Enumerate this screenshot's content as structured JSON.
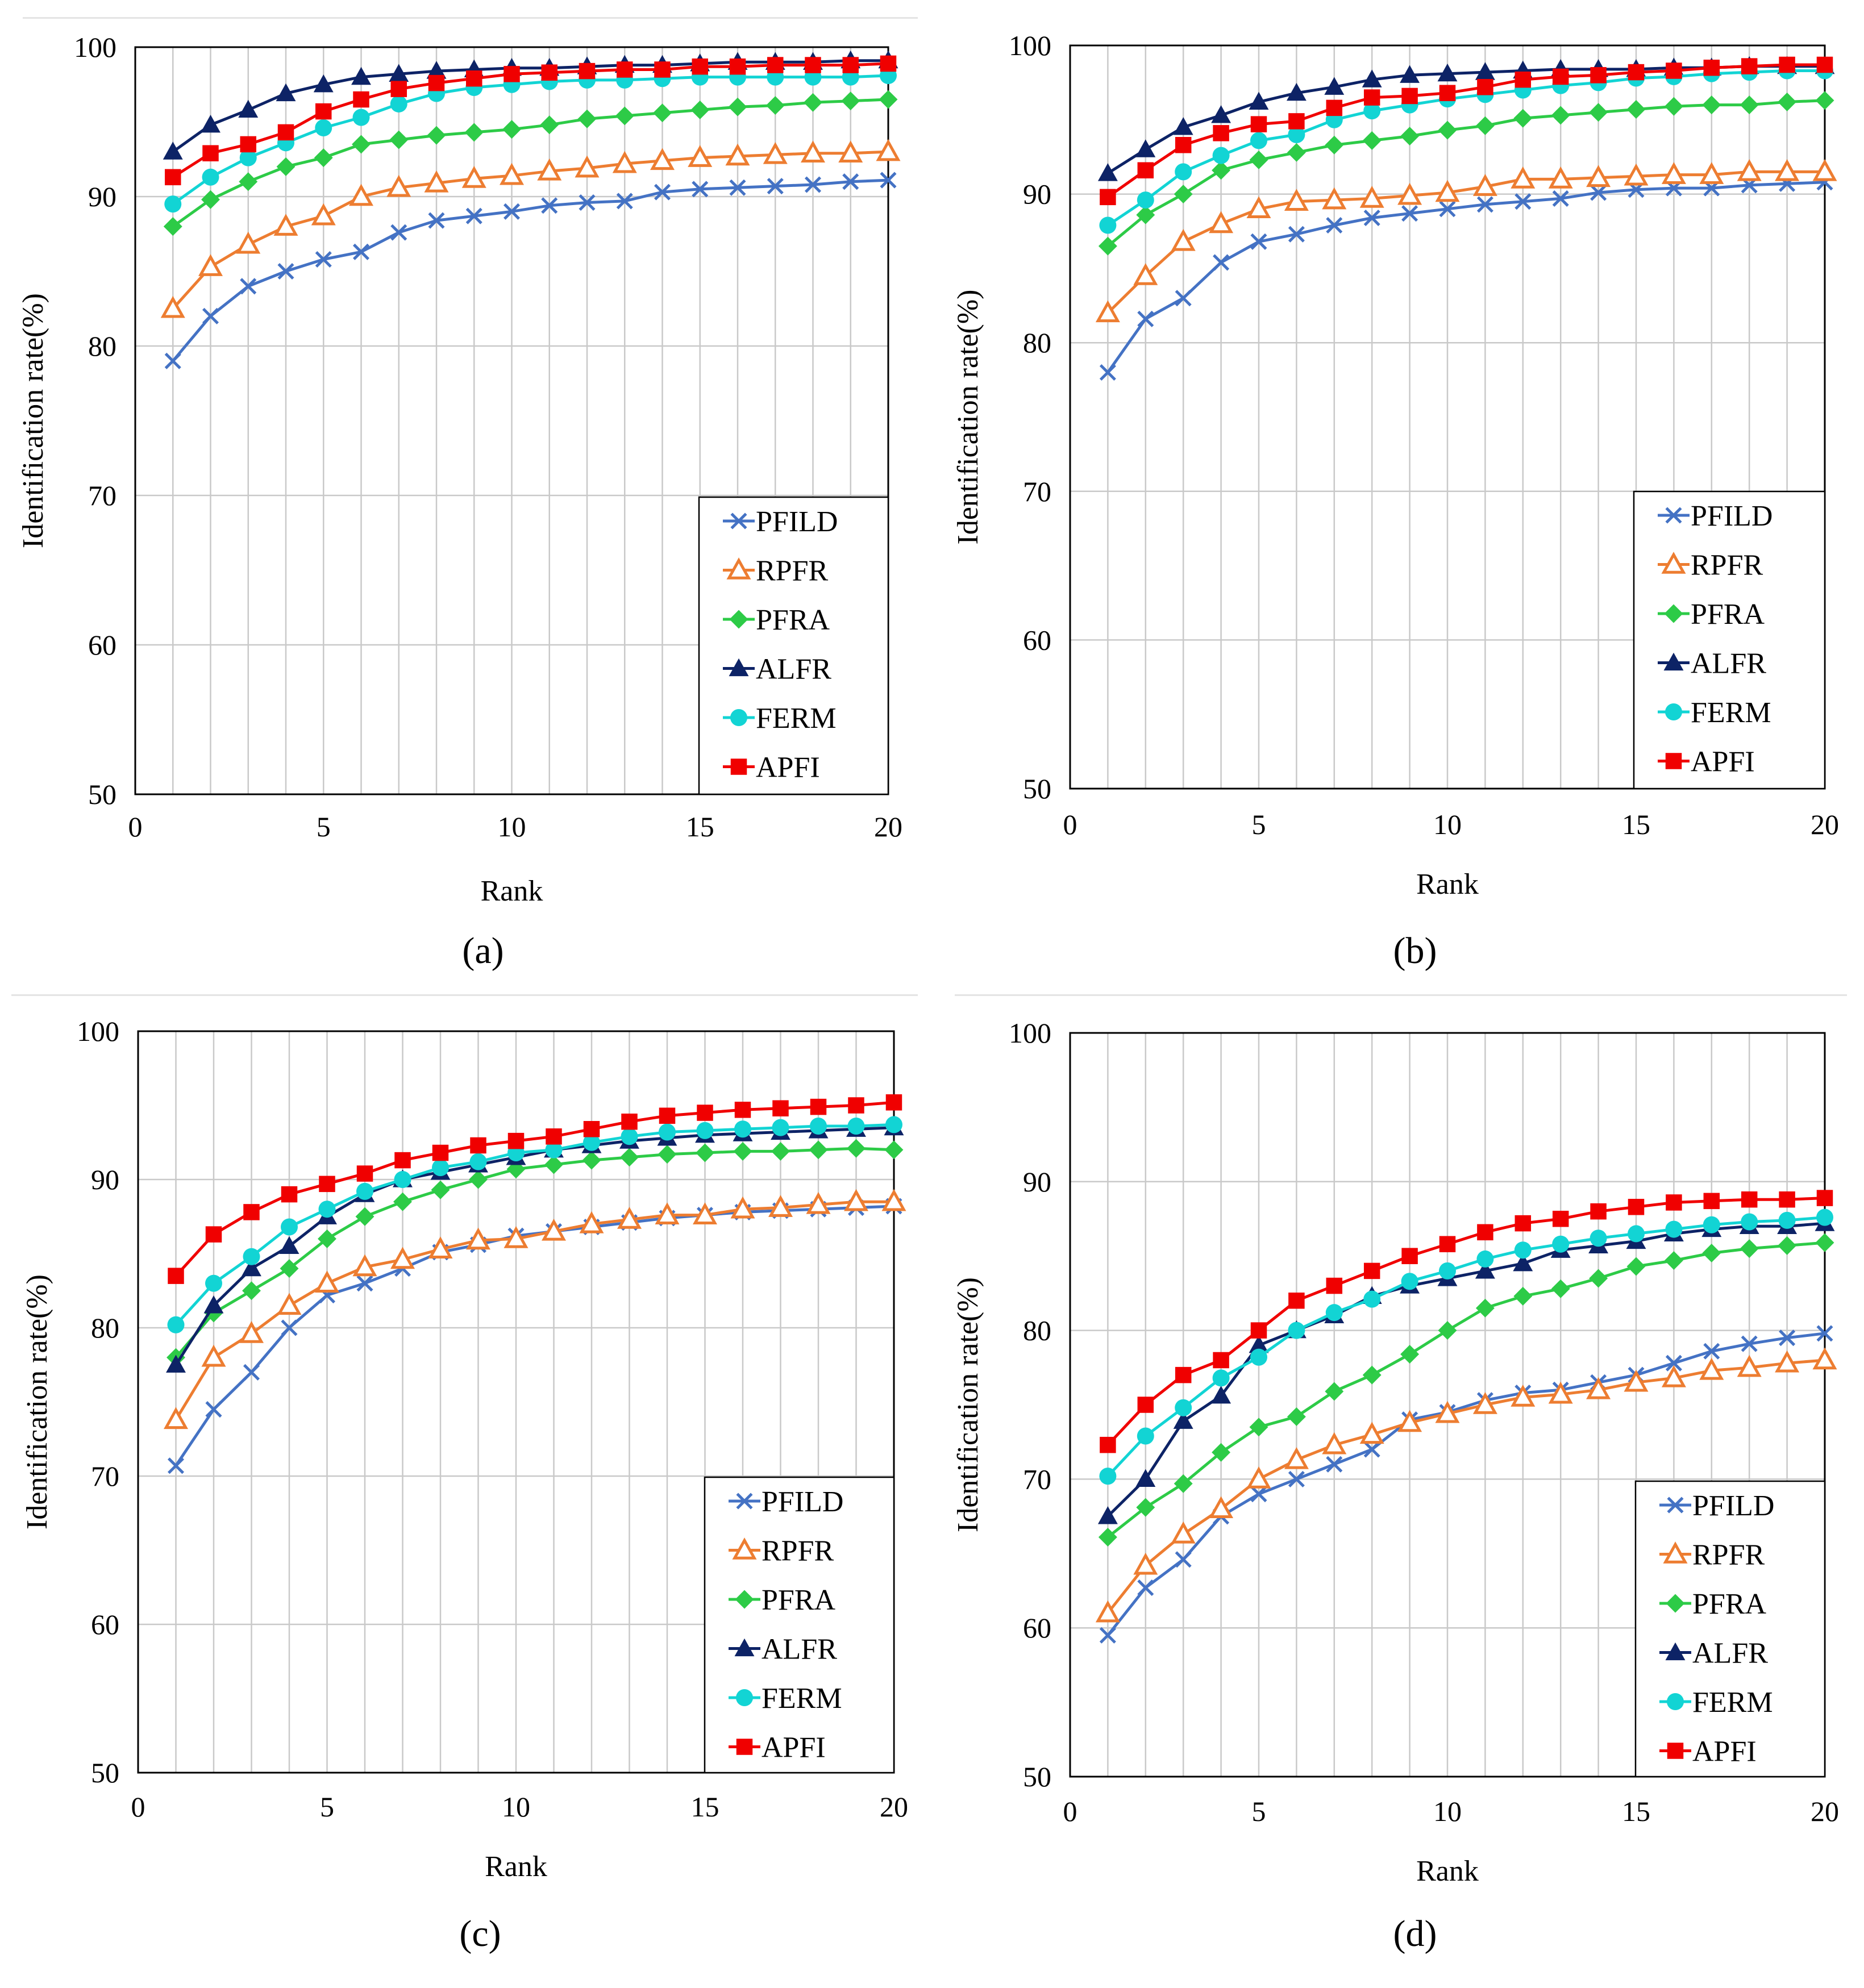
{
  "figure": {
    "colors": {
      "PFILD": "#4472C4",
      "RPFR": "#ED7D31",
      "PFRA": "#2DCB47",
      "ALFR": "#0D2366",
      "FERM": "#12D4D4",
      "APFI": "#F00000",
      "grid": "#c9c9c9",
      "axis": "#000000"
    },
    "marker_types": {
      "PFILD": "x",
      "RPFR": "triangle-open",
      "PFRA": "diamond",
      "ALFR": "triangle",
      "FERM": "circle",
      "APFI": "square"
    }
  },
  "chart_data": [
    {
      "panel": "(a)",
      "type": "line",
      "xlabel": "Rank",
      "ylabel": "Identification rate(%)",
      "xlim": [
        0,
        20
      ],
      "ylim": [
        50,
        100
      ],
      "xticks": [
        "0",
        "5",
        "10",
        "15",
        "20"
      ],
      "yticks": [
        "50",
        "60",
        "70",
        "80",
        "90",
        "100"
      ],
      "legend_position": "bottom-right",
      "x": [
        1,
        2,
        3,
        4,
        5,
        6,
        7,
        8,
        9,
        10,
        11,
        12,
        13,
        14,
        15,
        16,
        17,
        18,
        19,
        20
      ],
      "series": [
        {
          "name": "PFILD",
          "values": [
            79.0,
            82.0,
            84.0,
            85.0,
            85.8,
            86.3,
            87.6,
            88.4,
            88.7,
            89.0,
            89.4,
            89.6,
            89.7,
            90.3,
            90.5,
            90.6,
            90.7,
            90.8,
            91.0,
            91.1
          ]
        },
        {
          "name": "RPFR",
          "values": [
            82.5,
            85.3,
            86.8,
            88.0,
            88.7,
            90.0,
            90.6,
            90.9,
            91.2,
            91.4,
            91.7,
            91.9,
            92.2,
            92.4,
            92.6,
            92.7,
            92.8,
            92.9,
            92.9,
            93.0
          ]
        },
        {
          "name": "PFRA",
          "values": [
            88.0,
            89.8,
            91.0,
            92.0,
            92.6,
            93.5,
            93.8,
            94.1,
            94.3,
            94.5,
            94.8,
            95.2,
            95.4,
            95.6,
            95.8,
            96.0,
            96.1,
            96.3,
            96.4,
            96.5
          ]
        },
        {
          "name": "ALFR",
          "values": [
            93.0,
            94.8,
            95.8,
            96.9,
            97.5,
            98.0,
            98.2,
            98.4,
            98.5,
            98.6,
            98.6,
            98.7,
            98.8,
            98.8,
            98.9,
            99.0,
            99.0,
            99.0,
            99.1,
            99.1
          ]
        },
        {
          "name": "FERM",
          "values": [
            89.5,
            91.3,
            92.6,
            93.6,
            94.6,
            95.3,
            96.2,
            96.9,
            97.3,
            97.5,
            97.7,
            97.8,
            97.8,
            97.9,
            98.0,
            98.0,
            98.0,
            98.0,
            98.0,
            98.1
          ]
        },
        {
          "name": "APFI",
          "values": [
            91.3,
            92.9,
            93.5,
            94.3,
            95.7,
            96.5,
            97.2,
            97.6,
            97.9,
            98.2,
            98.3,
            98.4,
            98.5,
            98.5,
            98.7,
            98.7,
            98.8,
            98.8,
            98.8,
            98.9
          ]
        }
      ]
    },
    {
      "panel": "(b)",
      "type": "line",
      "xlabel": "Rank",
      "ylabel": "Identification rate(%)",
      "xlim": [
        0,
        20
      ],
      "ylim": [
        50,
        100
      ],
      "xticks": [
        "0",
        "5",
        "10",
        "15",
        "20"
      ],
      "yticks": [
        "50",
        "60",
        "70",
        "80",
        "90",
        "100"
      ],
      "legend_position": "bottom-right",
      "x": [
        1,
        2,
        3,
        4,
        5,
        6,
        7,
        8,
        9,
        10,
        11,
        12,
        13,
        14,
        15,
        16,
        17,
        18,
        19,
        20
      ],
      "series": [
        {
          "name": "PFILD",
          "values": [
            78.0,
            81.6,
            83.0,
            85.4,
            86.8,
            87.3,
            87.9,
            88.4,
            88.7,
            89.0,
            89.3,
            89.5,
            89.7,
            90.1,
            90.3,
            90.4,
            90.4,
            90.6,
            90.7,
            90.8
          ]
        },
        {
          "name": "RPFR",
          "values": [
            82.0,
            84.5,
            86.8,
            88.0,
            89.0,
            89.5,
            89.6,
            89.7,
            89.9,
            90.1,
            90.5,
            91.0,
            91.0,
            91.1,
            91.2,
            91.3,
            91.3,
            91.5,
            91.5,
            91.5
          ]
        },
        {
          "name": "PFRA",
          "values": [
            86.5,
            88.6,
            90.0,
            91.6,
            92.3,
            92.8,
            93.3,
            93.6,
            93.9,
            94.3,
            94.6,
            95.1,
            95.3,
            95.5,
            95.7,
            95.9,
            96.0,
            96.0,
            96.2,
            96.3
          ]
        },
        {
          "name": "ALFR",
          "values": [
            91.4,
            93.0,
            94.5,
            95.3,
            96.2,
            96.8,
            97.2,
            97.7,
            98.0,
            98.1,
            98.2,
            98.3,
            98.4,
            98.4,
            98.4,
            98.5,
            98.5,
            98.6,
            98.6,
            98.6
          ]
        },
        {
          "name": "FERM",
          "values": [
            87.9,
            89.6,
            91.5,
            92.6,
            93.6,
            94.0,
            95.0,
            95.6,
            96.0,
            96.4,
            96.7,
            97.0,
            97.3,
            97.5,
            97.8,
            97.9,
            98.1,
            98.2,
            98.3,
            98.3
          ]
        },
        {
          "name": "APFI",
          "values": [
            89.8,
            91.6,
            93.3,
            94.1,
            94.7,
            94.9,
            95.8,
            96.5,
            96.6,
            96.8,
            97.2,
            97.7,
            97.9,
            98.0,
            98.2,
            98.3,
            98.5,
            98.6,
            98.7,
            98.7
          ]
        }
      ]
    },
    {
      "panel": "(c)",
      "type": "line",
      "xlabel": "Rank",
      "ylabel": "Identification rate(%)",
      "xlim": [
        0,
        20
      ],
      "ylim": [
        50,
        100
      ],
      "xticks": [
        "0",
        "5",
        "10",
        "15",
        "20"
      ],
      "yticks": [
        "50",
        "60",
        "70",
        "80",
        "90",
        "100"
      ],
      "legend_position": "bottom-right",
      "x": [
        1,
        2,
        3,
        4,
        5,
        6,
        7,
        8,
        9,
        10,
        11,
        12,
        13,
        14,
        15,
        16,
        17,
        18,
        19,
        20
      ],
      "series": [
        {
          "name": "PFILD",
          "values": [
            70.7,
            74.5,
            77.0,
            80.0,
            82.2,
            83.0,
            84.0,
            85.1,
            85.6,
            86.2,
            86.5,
            86.8,
            87.1,
            87.4,
            87.6,
            87.8,
            87.9,
            88.0,
            88.1,
            88.2
          ]
        },
        {
          "name": "RPFR",
          "values": [
            73.8,
            78.0,
            79.6,
            81.5,
            83.0,
            84.1,
            84.6,
            85.3,
            85.9,
            86.0,
            86.5,
            87.0,
            87.3,
            87.6,
            87.6,
            88.0,
            88.1,
            88.3,
            88.5,
            88.5
          ]
        },
        {
          "name": "PFRA",
          "values": [
            78.0,
            81.0,
            82.5,
            84.0,
            86.0,
            87.5,
            88.5,
            89.3,
            90.0,
            90.7,
            91.0,
            91.3,
            91.5,
            91.7,
            91.8,
            91.9,
            91.9,
            92.0,
            92.1,
            92.0
          ]
        },
        {
          "name": "ALFR",
          "values": [
            77.5,
            81.5,
            84.0,
            85.5,
            87.5,
            89.0,
            90.0,
            90.5,
            91.0,
            91.5,
            92.0,
            92.3,
            92.6,
            92.8,
            93.0,
            93.1,
            93.2,
            93.3,
            93.4,
            93.5
          ]
        },
        {
          "name": "FERM",
          "values": [
            80.2,
            83.0,
            84.8,
            86.8,
            88.0,
            89.2,
            90.0,
            90.8,
            91.2,
            91.8,
            92.0,
            92.5,
            92.9,
            93.2,
            93.3,
            93.4,
            93.5,
            93.6,
            93.6,
            93.7
          ]
        },
        {
          "name": "APFI",
          "values": [
            83.5,
            86.3,
            87.8,
            89.0,
            89.7,
            90.4,
            91.3,
            91.8,
            92.3,
            92.6,
            92.9,
            93.4,
            93.9,
            94.3,
            94.5,
            94.7,
            94.8,
            94.9,
            95.0,
            95.2
          ]
        }
      ]
    },
    {
      "panel": "(d)",
      "type": "line",
      "xlabel": "Rank",
      "ylabel": "Identification rate(%)",
      "xlim": [
        0,
        20
      ],
      "ylim": [
        50,
        100
      ],
      "xticks": [
        "0",
        "5",
        "10",
        "15",
        "20"
      ],
      "yticks": [
        "50",
        "60",
        "70",
        "80",
        "90",
        "100"
      ],
      "legend_position": "bottom-right",
      "x": [
        1,
        2,
        3,
        4,
        5,
        6,
        7,
        8,
        9,
        10,
        11,
        12,
        13,
        14,
        15,
        16,
        17,
        18,
        19,
        20
      ],
      "series": [
        {
          "name": "PFILD",
          "values": [
            59.5,
            62.7,
            64.6,
            67.5,
            69.0,
            70.0,
            71.0,
            72.0,
            74.0,
            74.5,
            75.3,
            75.8,
            76.0,
            76.5,
            77.0,
            77.8,
            78.6,
            79.1,
            79.5,
            79.8
          ]
        },
        {
          "name": "RPFR",
          "values": [
            61.0,
            64.2,
            66.3,
            68.0,
            70.0,
            71.3,
            72.3,
            73.0,
            73.8,
            74.4,
            75.0,
            75.5,
            75.7,
            76.0,
            76.5,
            76.8,
            77.3,
            77.5,
            77.8,
            78.0
          ]
        },
        {
          "name": "PFRA",
          "values": [
            66.1,
            68.1,
            69.7,
            71.8,
            73.5,
            74.2,
            75.9,
            77.0,
            78.4,
            80.0,
            81.5,
            82.3,
            82.8,
            83.5,
            84.3,
            84.7,
            85.2,
            85.5,
            85.7,
            85.9
          ]
        },
        {
          "name": "ALFR",
          "values": [
            67.5,
            70.0,
            73.9,
            75.6,
            79.0,
            80.0,
            81.0,
            82.3,
            83.0,
            83.5,
            84.0,
            84.5,
            85.4,
            85.7,
            86.0,
            86.5,
            86.8,
            87.0,
            87.0,
            87.2
          ]
        },
        {
          "name": "FERM",
          "values": [
            70.2,
            72.9,
            74.8,
            76.8,
            78.2,
            80.0,
            81.2,
            82.1,
            83.3,
            84.0,
            84.8,
            85.4,
            85.8,
            86.2,
            86.5,
            86.8,
            87.1,
            87.3,
            87.4,
            87.6
          ]
        },
        {
          "name": "APFI",
          "values": [
            72.3,
            75.0,
            77.0,
            78.0,
            80.0,
            82.0,
            83.0,
            84.0,
            85.0,
            85.8,
            86.6,
            87.2,
            87.5,
            88.0,
            88.3,
            88.6,
            88.7,
            88.8,
            88.8,
            88.9
          ]
        }
      ]
    }
  ]
}
